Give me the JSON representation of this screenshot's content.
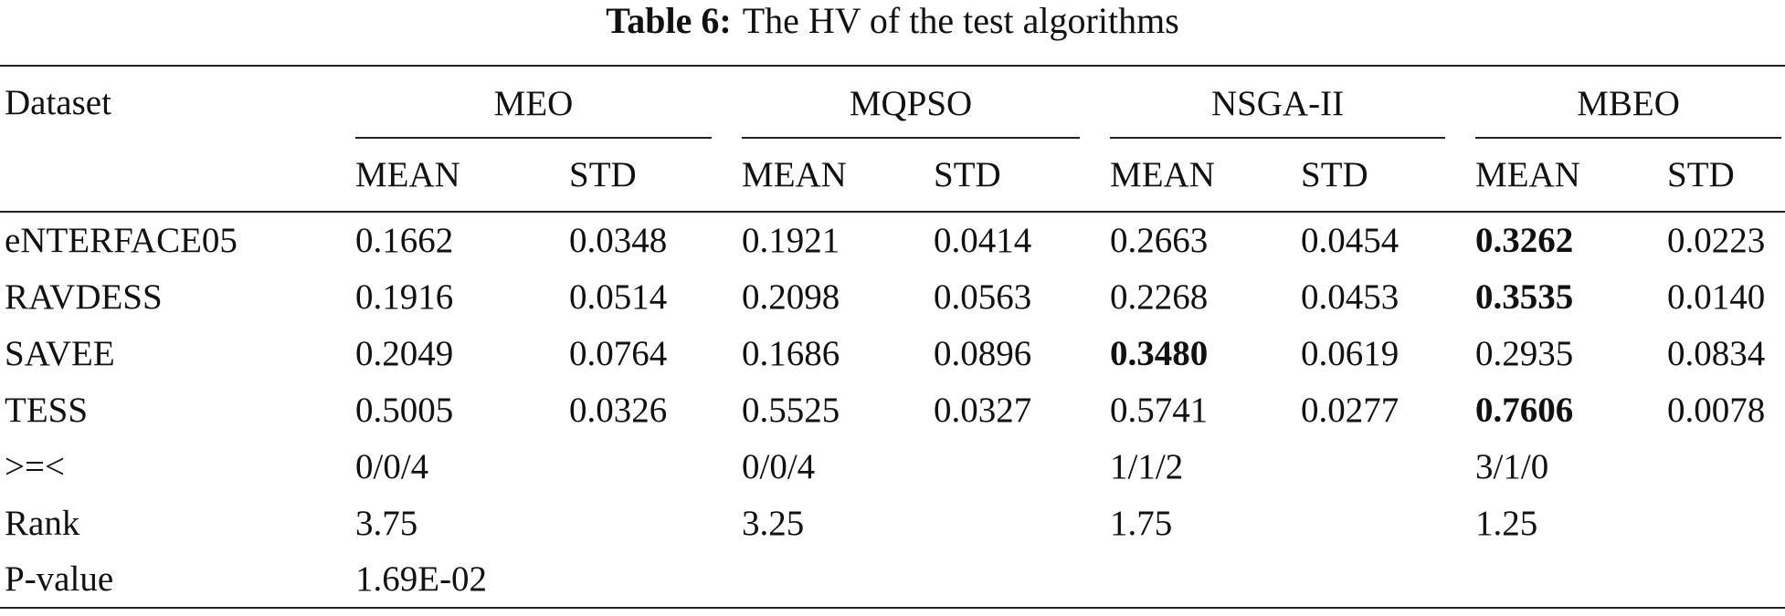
{
  "caption": {
    "label": "Table 6:",
    "text": "The HV of the test algorithms"
  },
  "table": {
    "header": {
      "dataset": "Dataset",
      "groups": [
        "MEO",
        "MQPSO",
        "NSGA-II",
        "MBEO"
      ],
      "subheaders": [
        "MEAN",
        "STD",
        "MEAN",
        "STD",
        "MEAN",
        "STD",
        "MEAN",
        "STD"
      ]
    },
    "rows": [
      [
        "eNTERFACE05",
        "0.1662",
        "0.0348",
        "0.1921",
        "0.0414",
        "0.2663",
        "0.0454",
        "0.3262",
        "0.0223"
      ],
      [
        "RAVDESS",
        "0.1916",
        "0.0514",
        "0.2098",
        "0.0563",
        "0.2268",
        "0.0453",
        "0.3535",
        "0.0140"
      ],
      [
        "SAVEE",
        "0.2049",
        "0.0764",
        "0.1686",
        "0.0896",
        "0.3480",
        "0.0619",
        "0.2935",
        "0.0834"
      ],
      [
        "TESS",
        "0.5005",
        "0.0326",
        "0.5525",
        "0.0327",
        "0.5741",
        "0.0277",
        "0.7606",
        "0.0078"
      ]
    ],
    "summary": [
      [
        "&gt;=&lt;",
        "0/0/4",
        "0/0/4",
        "1/1/2",
        "3/1/0"
      ],
      [
        "Rank",
        "3.75",
        "3.25",
        "1.75",
        "1.25"
      ],
      [
        "P-value",
        "1.69E-02"
      ]
    ]
  }
}
